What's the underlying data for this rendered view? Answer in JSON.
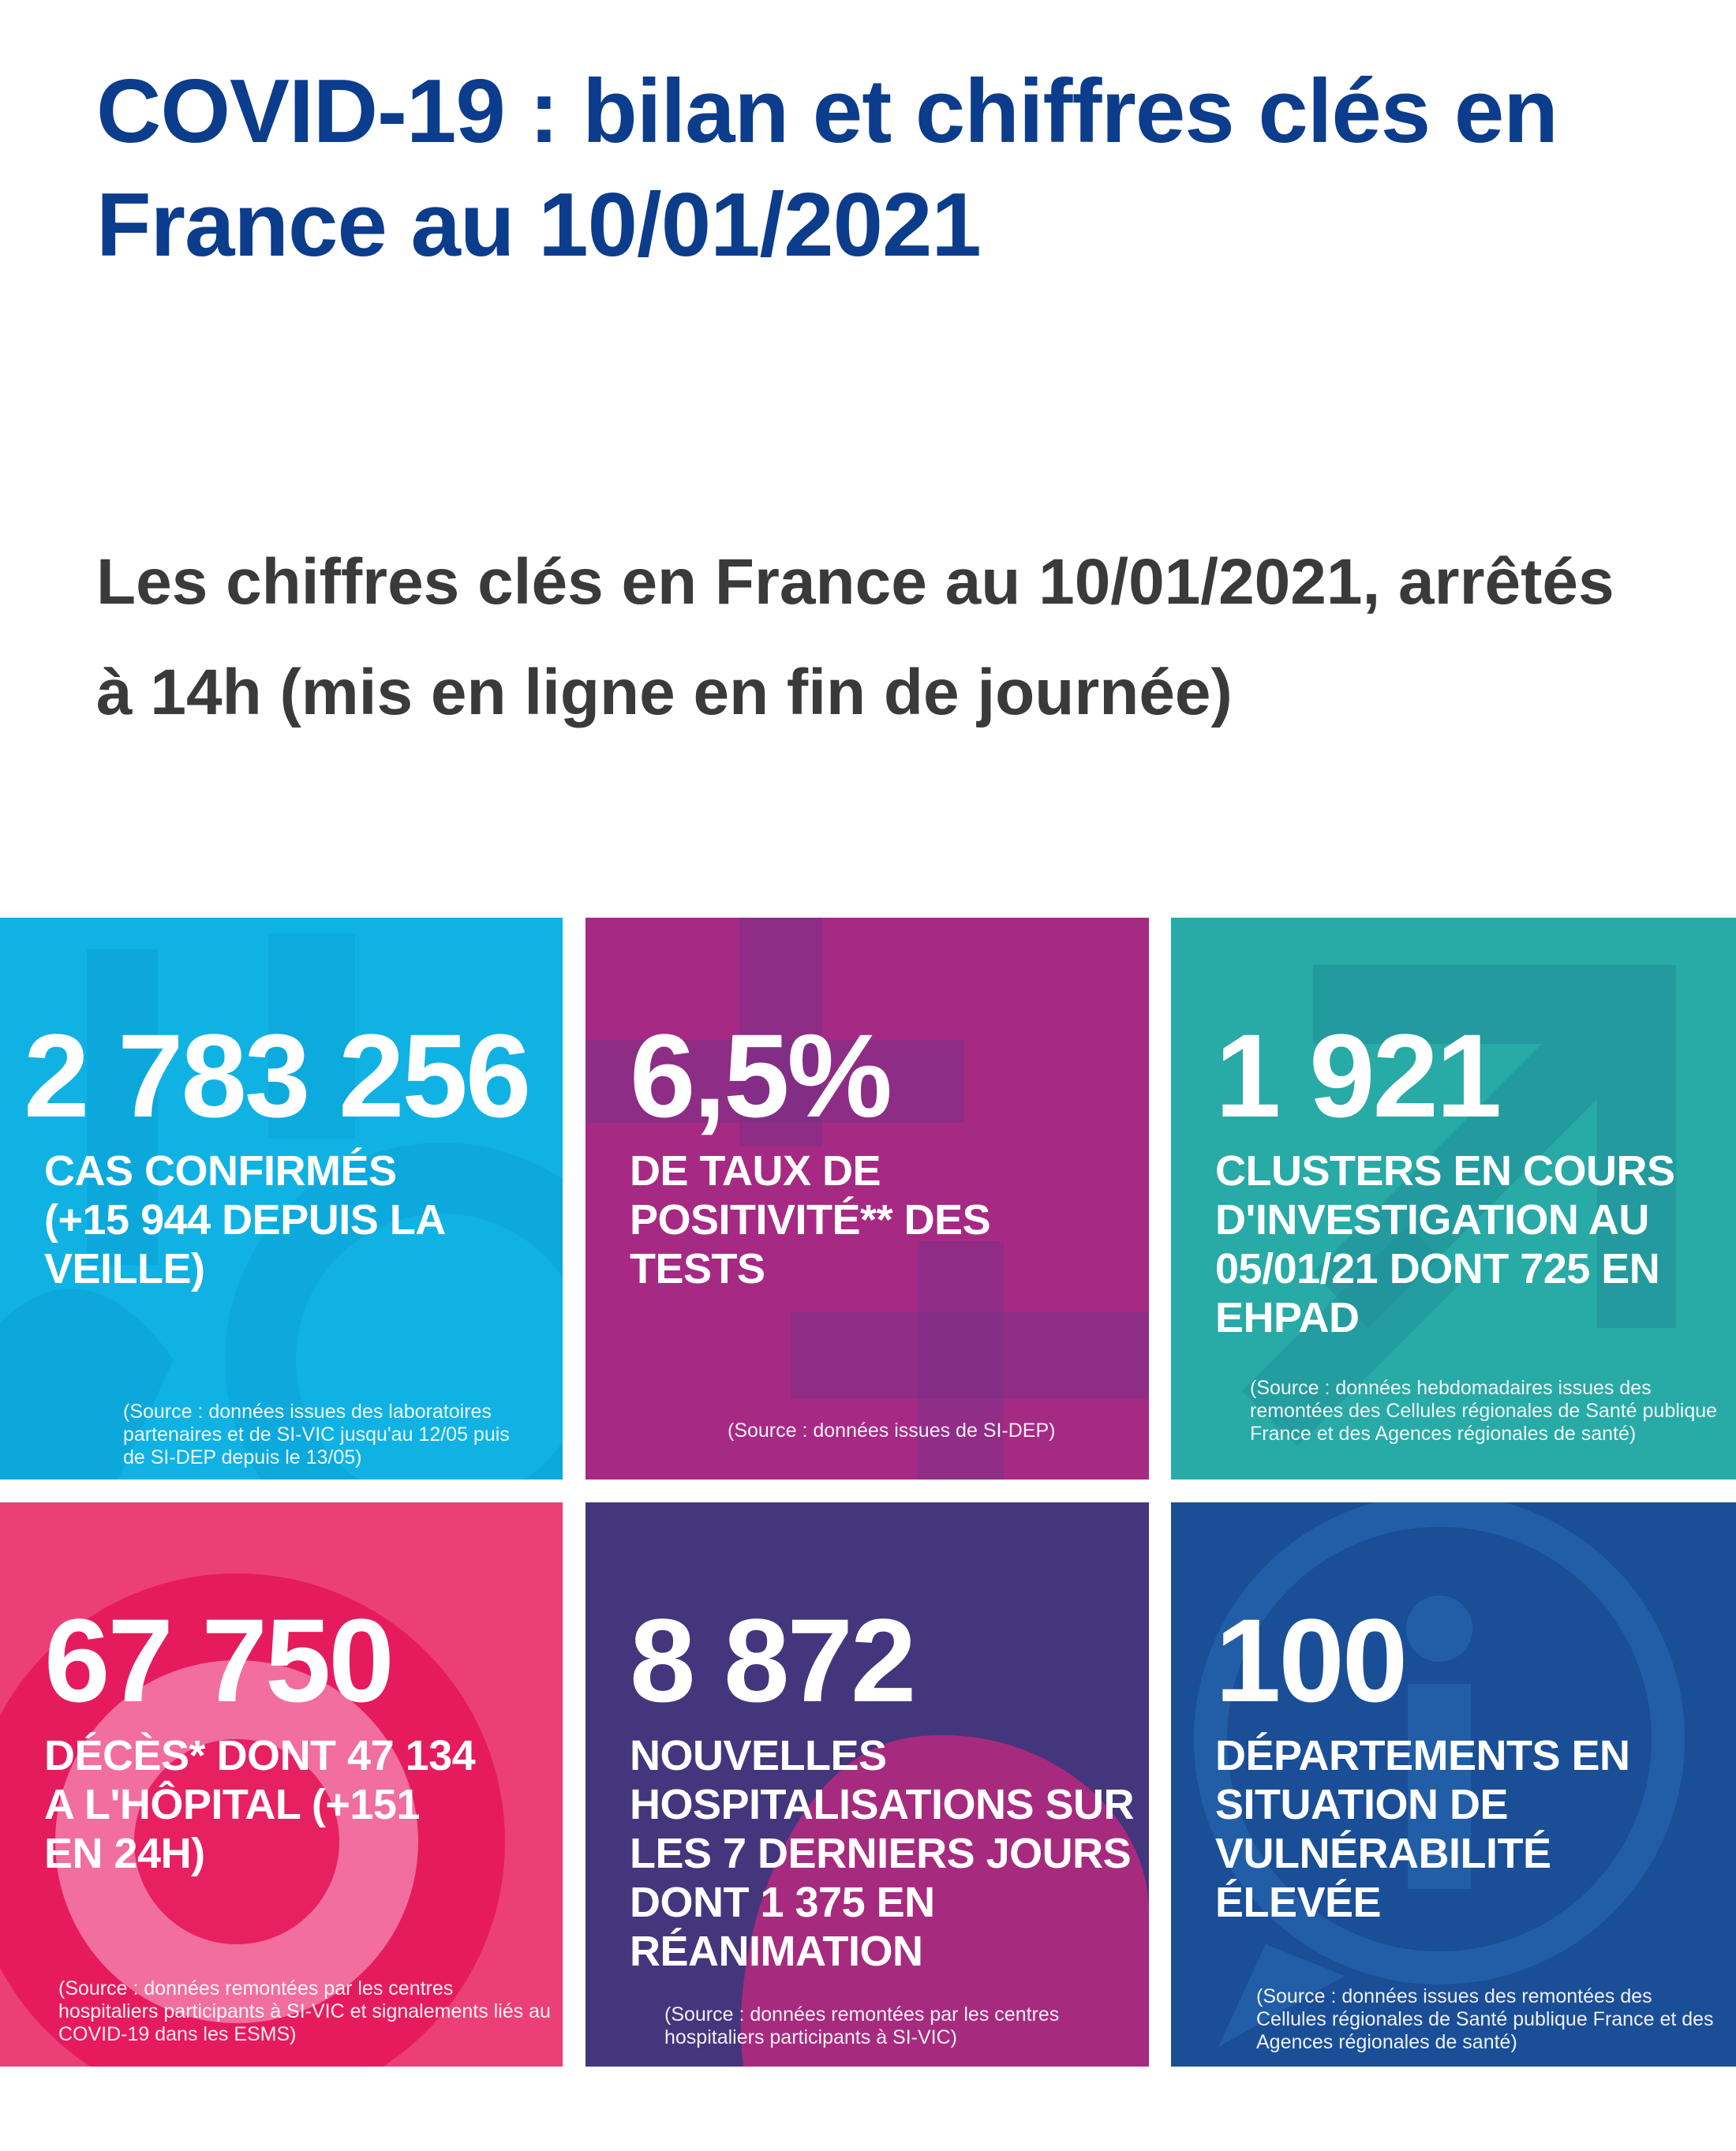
{
  "title": "COVID-19 : bilan et chiffres clés en France au 10/01/2021",
  "subtitle": "Les chiffres clés en France au 10/01/2021, arrêtés à 14h (mis en ligne en fin de journée)",
  "colors": {
    "title": "#0c3c8c",
    "subtitle": "#3a3a3a",
    "tile_cas": "#10b2e3",
    "tile_positivite": "#a62a84",
    "tile_clusters": "#28aaa6",
    "tile_deces": "#ec3f78",
    "tile_hospitalisations": "#44367d",
    "tile_departements": "#1a4e97"
  },
  "tiles": [
    {
      "value": "2 783 256",
      "label": "CAS CONFIRMÉS (+15 944 DEPUIS LA VEILLE)",
      "source": "(Source : données issues des laboratoires partenaires et de SI-VIC jusqu'au 12/05 puis de SI-DEP depuis le 13/05)"
    },
    {
      "value": "6,5%",
      "label": "DE TAUX DE POSITIVITÉ** DES TESTS",
      "source": "(Source : données issues de SI-DEP)"
    },
    {
      "value": "1 921",
      "label": "CLUSTERS EN COURS D'INVESTIGATION AU 05/01/21 DONT 725 EN EHPAD",
      "source": "(Source : données hebdomadaires issues des remontées des Cellules régionales de Santé publique France et des Agences régionales de santé)"
    },
    {
      "value": "67 750",
      "label": "DÉCÈS* DONT 47 134 A L'HÔPITAL (+151 EN 24H)",
      "source": "(Source : données remontées par les centres hospitaliers participants à SI-VIC et signalements liés au COVID-19 dans les ESMS)"
    },
    {
      "value": "8 872",
      "label": "NOUVELLES HOSPITALISATIONS SUR LES 7 DERNIERS JOURS DONT 1 375 EN RÉANIMATION",
      "source": "(Source : données remontées par les centres hospitaliers participants à SI-VIC)"
    },
    {
      "value": "100",
      "label": "DÉPARTEMENTS EN SITUATION DE VULNÉRABILITÉ ÉLEVÉE",
      "source": "(Source : données issues des remontées des Cellules régionales de Santé publique France et des Agences régionales de santé)"
    }
  ]
}
